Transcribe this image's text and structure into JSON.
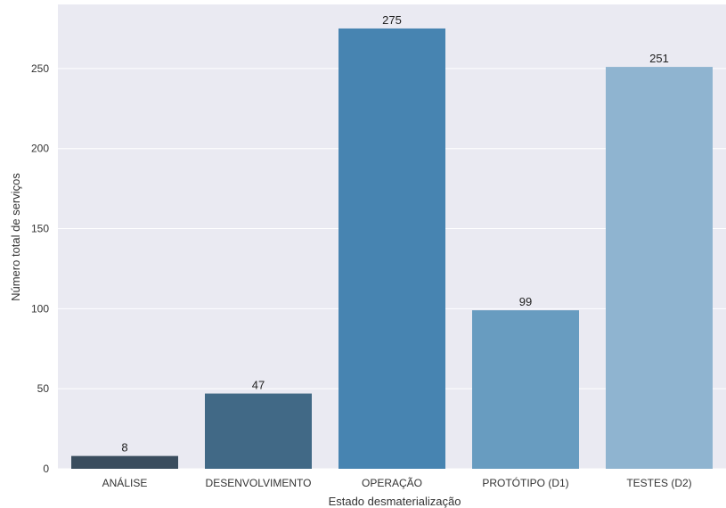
{
  "chart_data": {
    "type": "bar",
    "title": "",
    "xlabel": "Estado desmaterialização",
    "ylabel": "Número total de serviços",
    "categories": [
      "ANÁLISE",
      "DESENVOLVIMENTO",
      "OPERAÇÃO",
      "PROTÓTIPO (D1)",
      "TESTES (D2)"
    ],
    "values": [
      8,
      47,
      275,
      99,
      251
    ],
    "data_labels": [
      "8",
      "47",
      "275",
      "99",
      "251"
    ],
    "ylim": [
      0,
      290
    ],
    "yticks": [
      0,
      50,
      100,
      150,
      200,
      250
    ],
    "grid": true,
    "legend": "none",
    "colors": {
      "background": "#eaeaf2",
      "grid": "#ffffff",
      "bars": [
        "#3a4d5e",
        "#416986",
        "#4784b1",
        "#689cc0",
        "#8fb4d0"
      ]
    }
  }
}
